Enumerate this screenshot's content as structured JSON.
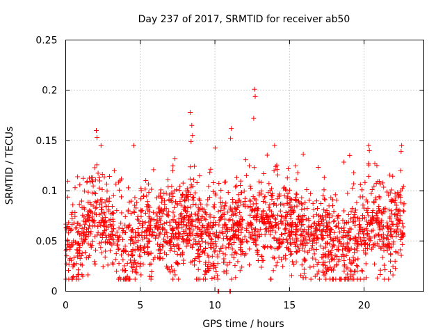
{
  "chart_data": {
    "type": "scatter",
    "title": "Day 237 of 2017, SRMTID for receiver ab50",
    "xlabel": "GPS time / hours",
    "ylabel": "SRMTID / TECUs",
    "xlim": [
      0,
      24
    ],
    "ylim": [
      0,
      0.25
    ],
    "xticks": [
      0,
      5,
      10,
      15,
      20
    ],
    "xtick_labels": [
      "0",
      "5",
      "10",
      "15",
      "20"
    ],
    "yticks": [
      0,
      0.05,
      0.1,
      0.15,
      0.2,
      0.25
    ],
    "ytick_labels": [
      "0",
      "0.05",
      "0.1",
      "0.15",
      "0.2",
      "0.25"
    ],
    "grid": true,
    "marker": "+",
    "series_color": "#ff0000",
    "series": [
      {
        "name": "SRMTID",
        "notable_points": [
          {
            "x": 12.65,
            "y": 0.201
          },
          {
            "x": 12.7,
            "y": 0.194
          },
          {
            "x": 12.6,
            "y": 0.172
          },
          {
            "x": 8.35,
            "y": 0.178
          },
          {
            "x": 8.45,
            "y": 0.165
          },
          {
            "x": 8.5,
            "y": 0.155
          },
          {
            "x": 8.4,
            "y": 0.149
          },
          {
            "x": 2.05,
            "y": 0.16
          },
          {
            "x": 2.1,
            "y": 0.153
          },
          {
            "x": 11.1,
            "y": 0.162
          },
          {
            "x": 11.05,
            "y": 0.152
          },
          {
            "x": 14.0,
            "y": 0.145
          },
          {
            "x": 20.3,
            "y": 0.145
          },
          {
            "x": 20.35,
            "y": 0.14
          },
          {
            "x": 10.2,
            "y": 0.0
          },
          {
            "x": 10.25,
            "y": 0.0
          },
          {
            "x": 11.0,
            "y": 0.0
          },
          {
            "x": 11.05,
            "y": 0.0
          }
        ],
        "trend": [
          {
            "x": 0.0,
            "y": 0.055
          },
          {
            "x": 0.5,
            "y": 0.045
          },
          {
            "x": 1.0,
            "y": 0.05
          },
          {
            "x": 1.5,
            "y": 0.065
          },
          {
            "x": 2.0,
            "y": 0.075
          },
          {
            "x": 2.5,
            "y": 0.068
          },
          {
            "x": 3.0,
            "y": 0.058
          },
          {
            "x": 3.5,
            "y": 0.052
          },
          {
            "x": 4.0,
            "y": 0.045
          },
          {
            "x": 4.5,
            "y": 0.042
          },
          {
            "x": 5.0,
            "y": 0.055
          },
          {
            "x": 5.5,
            "y": 0.06
          },
          {
            "x": 6.0,
            "y": 0.058
          },
          {
            "x": 6.5,
            "y": 0.062
          },
          {
            "x": 7.0,
            "y": 0.06
          },
          {
            "x": 7.5,
            "y": 0.062
          },
          {
            "x": 8.0,
            "y": 0.065
          },
          {
            "x": 8.5,
            "y": 0.07
          },
          {
            "x": 9.0,
            "y": 0.055
          },
          {
            "x": 9.5,
            "y": 0.052
          },
          {
            "x": 10.0,
            "y": 0.05
          },
          {
            "x": 10.5,
            "y": 0.065
          },
          {
            "x": 11.0,
            "y": 0.06
          },
          {
            "x": 11.5,
            "y": 0.062
          },
          {
            "x": 12.0,
            "y": 0.06
          },
          {
            "x": 12.5,
            "y": 0.07
          },
          {
            "x": 13.0,
            "y": 0.065
          },
          {
            "x": 13.5,
            "y": 0.07
          },
          {
            "x": 14.0,
            "y": 0.068
          },
          {
            "x": 14.5,
            "y": 0.066
          },
          {
            "x": 15.0,
            "y": 0.068
          },
          {
            "x": 15.5,
            "y": 0.06
          },
          {
            "x": 16.0,
            "y": 0.057
          },
          {
            "x": 16.5,
            "y": 0.058
          },
          {
            "x": 17.0,
            "y": 0.055
          },
          {
            "x": 17.5,
            "y": 0.05
          },
          {
            "x": 18.0,
            "y": 0.048
          },
          {
            "x": 18.5,
            "y": 0.045
          },
          {
            "x": 19.0,
            "y": 0.043
          },
          {
            "x": 19.5,
            "y": 0.052
          },
          {
            "x": 20.0,
            "y": 0.06
          },
          {
            "x": 20.5,
            "y": 0.066
          },
          {
            "x": 21.0,
            "y": 0.062
          },
          {
            "x": 21.5,
            "y": 0.058
          },
          {
            "x": 22.0,
            "y": 0.065
          },
          {
            "x": 22.5,
            "y": 0.07
          },
          {
            "x": 22.7,
            "y": 0.075
          }
        ],
        "spread": 0.022,
        "point_count": 2200,
        "x_range": [
          0,
          22.7
        ]
      }
    ]
  }
}
